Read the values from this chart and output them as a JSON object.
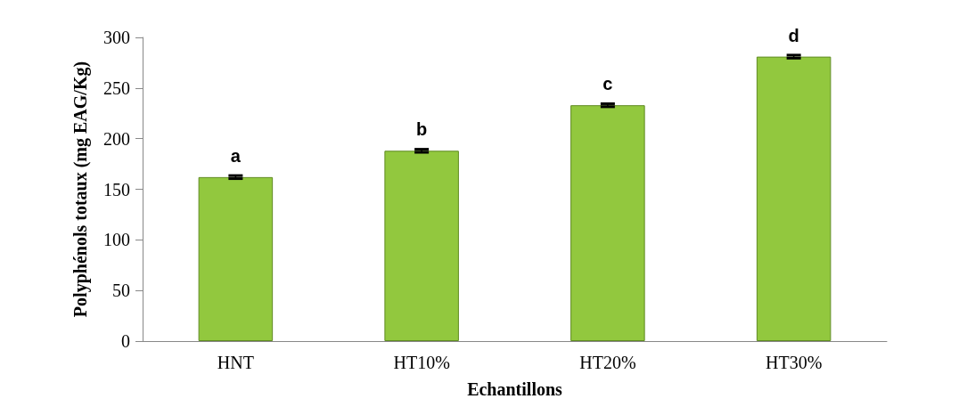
{
  "chart_data": {
    "type": "bar",
    "xlabel": "Echantillons",
    "ylabel": "Polyphénols totaux (mg EAG/Kg)",
    "categories": [
      "HNT",
      "HT10%",
      "HT20%",
      "HT30%"
    ],
    "values": [
      162,
      188,
      233,
      281
    ],
    "errors": [
      1.5,
      1.5,
      1.5,
      1.5
    ],
    "color": "#92c83e",
    "ylim": [
      0,
      300
    ],
    "yticks": [
      0,
      50,
      100,
      150,
      200,
      250,
      300
    ],
    "grid": false,
    "annotations": [
      {
        "text": "a",
        "x": "HNT",
        "y": 162
      },
      {
        "text": "b",
        "x": "HT10%",
        "y": 188
      },
      {
        "text": "c",
        "x": "HT20%",
        "y": 233
      },
      {
        "text": "d",
        "x": "HT30%",
        "y": 281
      }
    ]
  }
}
